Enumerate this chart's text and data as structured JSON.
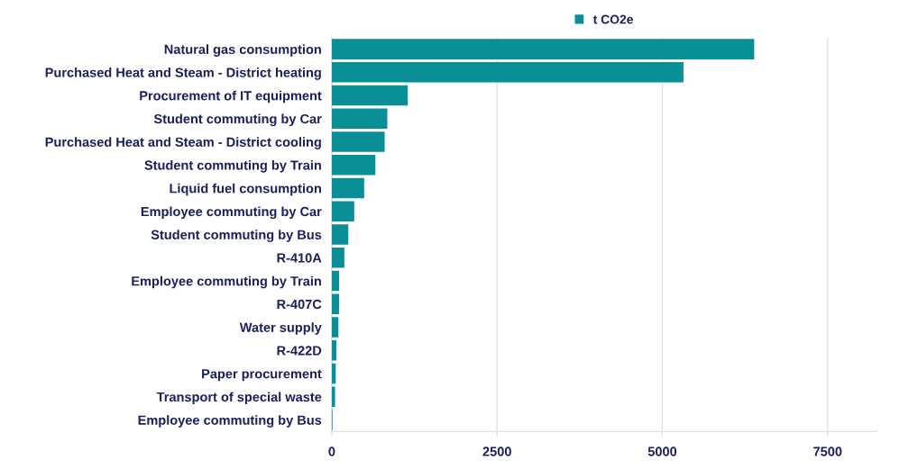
{
  "chart_data": {
    "type": "bar",
    "orientation": "horizontal",
    "categories": [
      "Natural gas consumption",
      "Purchased Heat and Steam - District heating",
      "Procurement of IT equipment",
      "Student commuting by Car",
      "Purchased Heat and Steam - District cooling",
      "Student commuting by Train",
      "Liquid fuel consumption",
      "Employee commuting by Car",
      "Student commuting by Bus",
      "R-410A",
      "Employee commuting by Train",
      "R-407C",
      "Water supply",
      "R-422D",
      "Paper procurement",
      "Transport of special waste",
      "Employee commuting by Bus"
    ],
    "series": [
      {
        "name": "t CO2e",
        "color": "#0a8f96",
        "values": [
          6390,
          5320,
          1150,
          840,
          800,
          660,
          490,
          340,
          250,
          190,
          110,
          110,
          100,
          70,
          60,
          50,
          10
        ]
      }
    ],
    "xlim": [
      0,
      8250
    ],
    "xticks": [
      0,
      2500,
      5000,
      7500
    ],
    "grid": "x",
    "legend": "top"
  }
}
